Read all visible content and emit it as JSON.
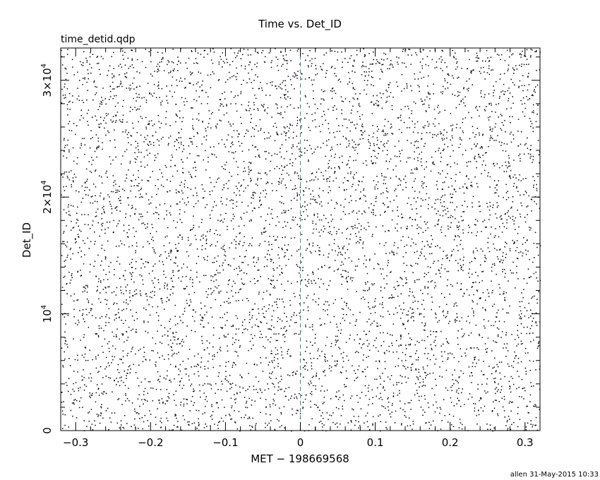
{
  "chart_data": {
    "type": "scatter",
    "title": "Time vs. Det_ID",
    "subtitle": "time_detid.qdp",
    "xlabel": "MET − 198669568",
    "ylabel": "Det_ID",
    "xlim": [
      -0.32,
      0.32
    ],
    "ylim": [
      0,
      32767
    ],
    "x_ticks": [
      {
        "value": -0.3,
        "label": "−0.3"
      },
      {
        "value": -0.2,
        "label": "−0.2"
      },
      {
        "value": -0.1,
        "label": "−0.1"
      },
      {
        "value": 0,
        "label": "0"
      },
      {
        "value": 0.1,
        "label": "0.1"
      },
      {
        "value": 0.2,
        "label": "0.2"
      },
      {
        "value": 0.3,
        "label": "0.3"
      }
    ],
    "y_ticks": [
      {
        "value": 0,
        "mantissa": "0",
        "exponent": ""
      },
      {
        "value": 10000,
        "mantissa": "10",
        "exponent": "4"
      },
      {
        "value": 20000,
        "mantissa": "2×10",
        "exponent": "4"
      },
      {
        "value": 30000,
        "mantissa": "3×10",
        "exponent": "4"
      }
    ],
    "marker_line": {
      "x": 0,
      "style": "dashed",
      "color": "#3a8a9a"
    },
    "point_color": "#000000",
    "point_count": 6000,
    "point_distribution": "uniform random over xlim × ylim",
    "grid": false,
    "legend": "none"
  },
  "footer": {
    "credit": "allen 31-May-2015 10:33"
  }
}
